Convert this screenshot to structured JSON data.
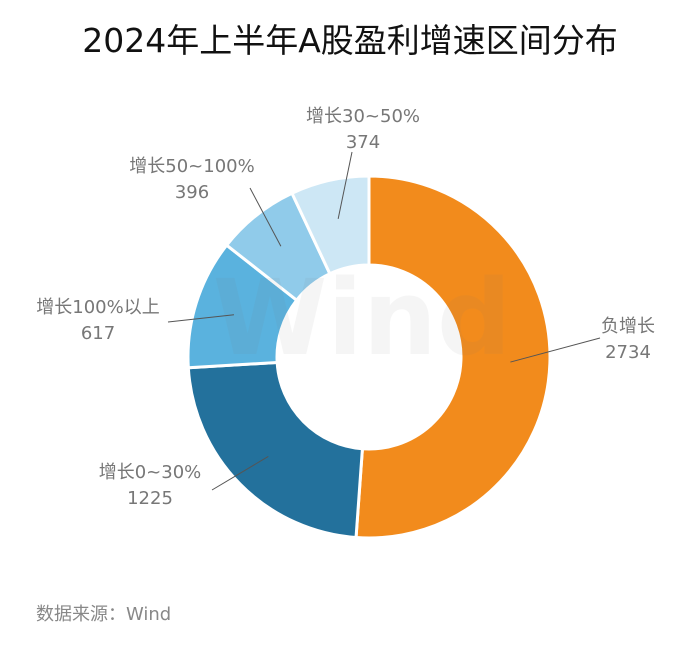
{
  "title": "2024年上半年A股盈利增速区间分布",
  "source": "数据来源：Wind",
  "watermark": "Wind",
  "chart_data": {
    "type": "pie",
    "subtype": "donut",
    "title": "2024年上半年A股盈利增速区间分布",
    "slices": [
      {
        "label": "负增长",
        "value": 2734,
        "color": "#f28b1c"
      },
      {
        "label": "增长0~30%",
        "value": 1225,
        "color": "#23719c"
      },
      {
        "label": "增长100%以上",
        "value": 617,
        "color": "#5ab2de"
      },
      {
        "label": "增长50~100%",
        "value": 396,
        "color": "#90cbea"
      },
      {
        "label": "增长30~50%",
        "value": 374,
        "color": "#cde7f5"
      }
    ],
    "legend": "none"
  }
}
